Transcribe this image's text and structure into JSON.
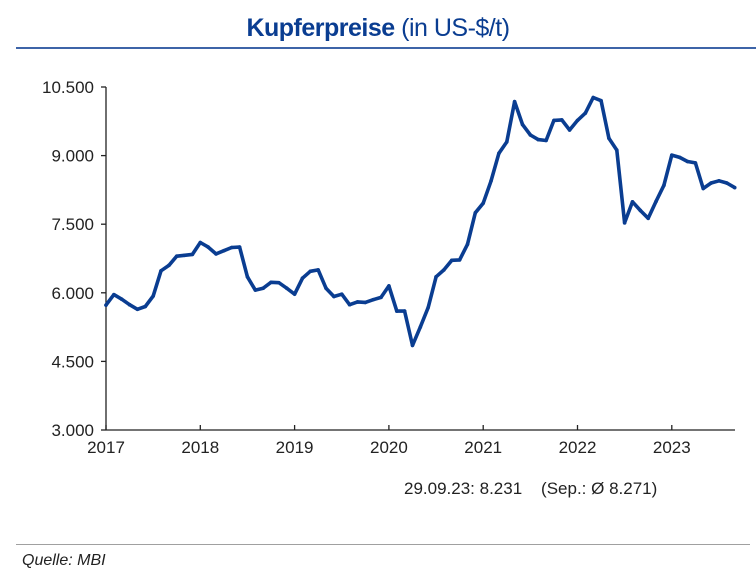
{
  "chart_data": {
    "type": "line",
    "title_bold": "Kupferpreise",
    "title_rest": "(in US-$/t)",
    "xlabel": "",
    "ylabel": "",
    "x_start": "2017-01",
    "x_frequency": "monthly",
    "x_ticks": [
      "2017",
      "2018",
      "2019",
      "2020",
      "2021",
      "2022",
      "2023"
    ],
    "y_ticks": [
      {
        "value": 3000,
        "label": "3.000"
      },
      {
        "value": 4500,
        "label": "4.500"
      },
      {
        "value": 6000,
        "label": "6.000"
      },
      {
        "value": 7500,
        "label": "7.500"
      },
      {
        "value": 9000,
        "label": "9.000"
      },
      {
        "value": 10500,
        "label": "10.500"
      }
    ],
    "ylim": [
      3000,
      10500
    ],
    "grid": false,
    "series": [
      {
        "color": "#0a3d91",
        "values": [
          5730,
          5960,
          5860,
          5740,
          5640,
          5700,
          5930,
          6480,
          6600,
          6800,
          6820,
          6840,
          7100,
          7000,
          6850,
          6920,
          6990,
          7000,
          6350,
          6060,
          6100,
          6230,
          6220,
          6100,
          5970,
          6320,
          6470,
          6500,
          6100,
          5920,
          5970,
          5740,
          5800,
          5790,
          5850,
          5900,
          6150,
          5600,
          5600,
          4850,
          5250,
          5680,
          6350,
          6500,
          6710,
          6720,
          7060,
          7750,
          7960,
          8450,
          9050,
          9300,
          10180,
          9680,
          9450,
          9350,
          9330,
          9770,
          9780,
          9560,
          9770,
          9930,
          10270,
          10200,
          9380,
          9120,
          7530,
          7990,
          7800,
          7630,
          8000,
          8350,
          9010,
          8960,
          8870,
          8840,
          8280,
          8400,
          8450,
          8400,
          8300
        ]
      }
    ],
    "annotation": "29.09.23: 8.231    (Sep.: Ø 8.271)"
  },
  "source": "Quelle: MBI",
  "colors": {
    "title": "#0a3d91",
    "line": "#0a3d91",
    "title_rule": "#3d64a8"
  }
}
